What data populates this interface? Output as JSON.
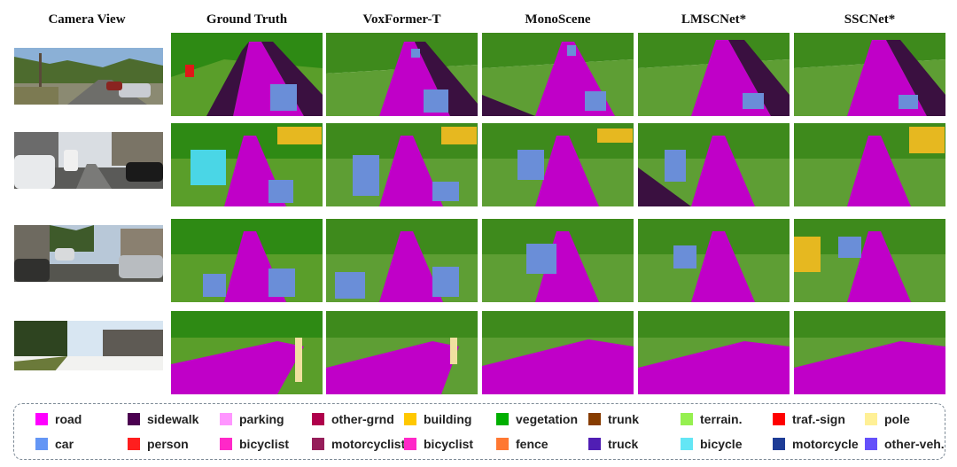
{
  "columns": {
    "camera": "Camera View",
    "gt": "Ground Truth",
    "voxformer": "VoxFormer-T",
    "monoscene": "MonoScene",
    "lmscnet": "LMSCNet*",
    "sscnet": "SSCNet*"
  },
  "legend": [
    {
      "label": "road",
      "color": "#ff00ff"
    },
    {
      "label": "sidewalk",
      "color": "#4b0050"
    },
    {
      "label": "parking",
      "color": "#ff96ff"
    },
    {
      "label": "other-grnd",
      "color": "#af004b"
    },
    {
      "label": "building",
      "color": "#ffc800"
    },
    {
      "label": "vegetation",
      "color": "#00af00"
    },
    {
      "label": "trunk",
      "color": "#873c00"
    },
    {
      "label": "terrain.",
      "color": "#96f050"
    },
    {
      "label": "traf.-sign",
      "color": "#ff0000"
    },
    {
      "label": "pole",
      "color": "#fff096"
    },
    {
      "label": "car",
      "color": "#6496f5"
    },
    {
      "label": "person",
      "color": "#ff1e1e"
    },
    {
      "label": "bicyclist",
      "color": "#ff28c8"
    },
    {
      "label": "motorcyclist",
      "color": "#961e5a"
    },
    {
      "label": "bicyclist",
      "color": "#ff28c8"
    },
    {
      "label": "fence",
      "color": "#ff7832"
    },
    {
      "label": "truck",
      "color": "#501eb4"
    },
    {
      "label": "bicycle",
      "color": "#64e6f5"
    },
    {
      "label": "motorcycle",
      "color": "#1e3c96"
    },
    {
      "label": "other-veh.",
      "color": "#6450fa"
    }
  ]
}
